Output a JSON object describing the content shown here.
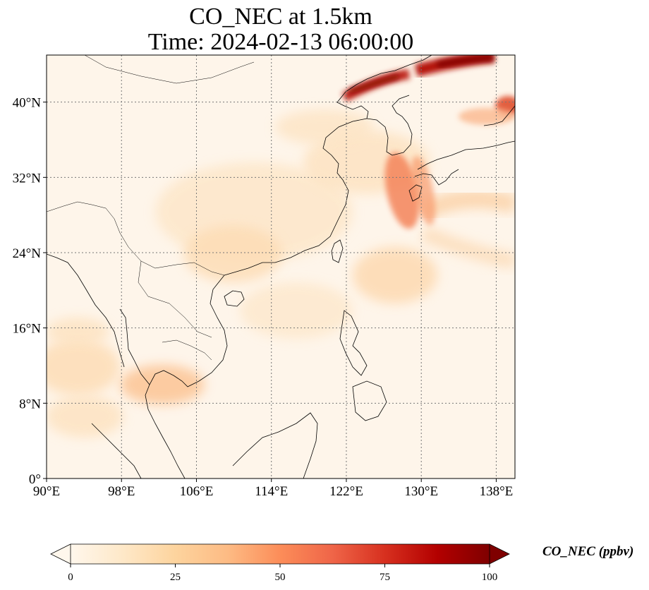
{
  "title": {
    "line1": "CO_NEC at 1.5km",
    "line2": "Time: 2024-02-13 06:00:00"
  },
  "map": {
    "extent_lon": [
      90,
      140
    ],
    "extent_lat": [
      0,
      45
    ],
    "lon_ticks": [
      90,
      98,
      106,
      114,
      122,
      130,
      138
    ],
    "lat_ticks": [
      0,
      8,
      16,
      24,
      32,
      40
    ],
    "lon_tick_labels": [
      "90°E",
      "98°E",
      "106°E",
      "114°E",
      "122°E",
      "130°E",
      "138°E"
    ],
    "lat_tick_labels": [
      "0°",
      "8°N",
      "16°N",
      "24°N",
      "32°N",
      "40°N"
    ],
    "gridlines": true,
    "colormap": "OrRd"
  },
  "colorbar": {
    "label": "CO_NEC (ppbv)",
    "ticks": [
      "0",
      "25",
      "50",
      "75",
      "100"
    ],
    "range": [
      0,
      100
    ],
    "colors": [
      "#fff7ec",
      "#fee8c8",
      "#fdd49e",
      "#fdbb84",
      "#fc8d59",
      "#ef6548",
      "#d7301f",
      "#b30000",
      "#7f0000"
    ]
  }
}
